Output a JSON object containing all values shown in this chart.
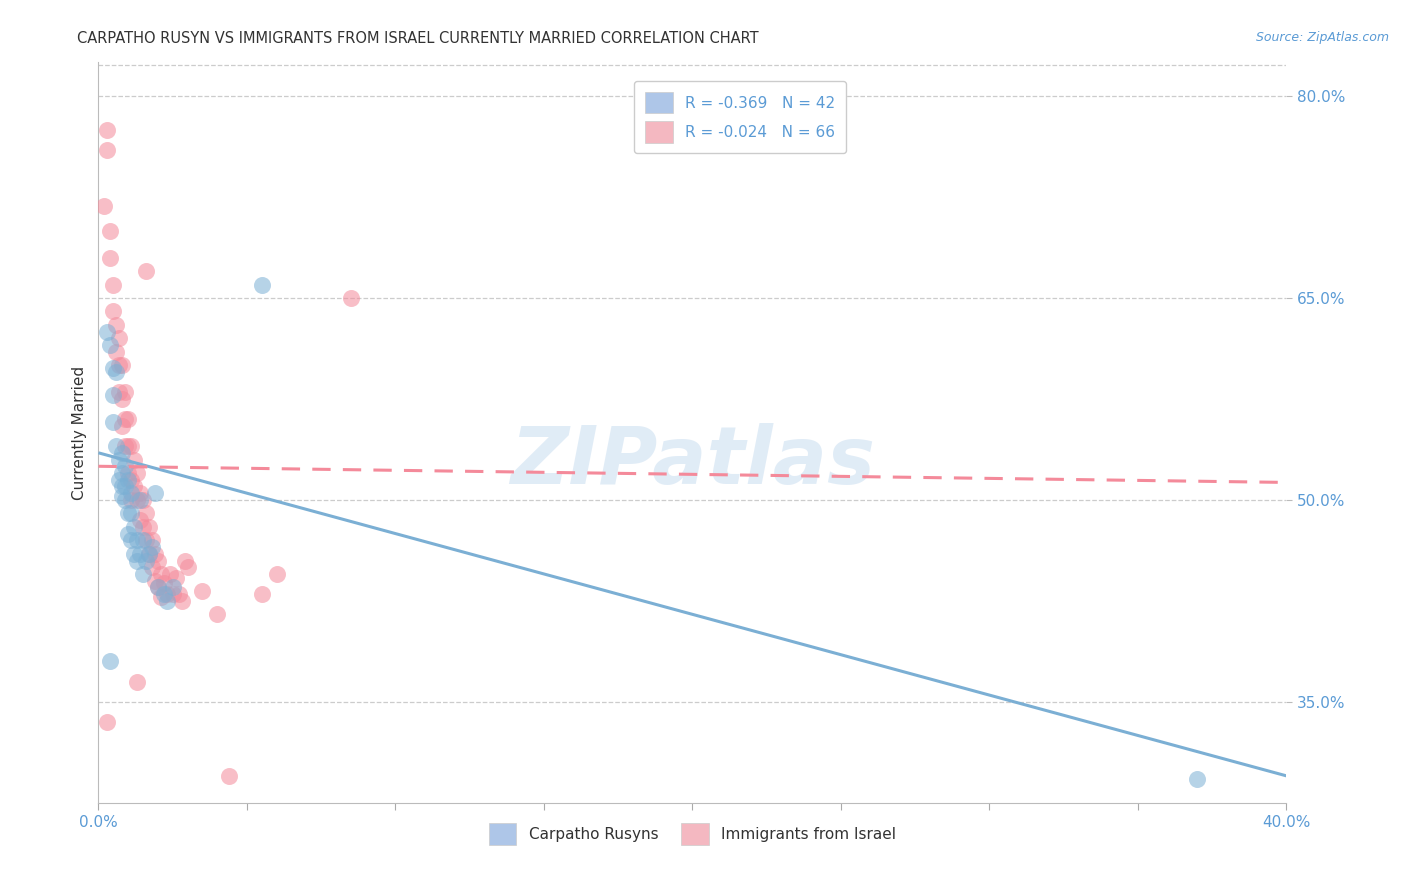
{
  "title": "CARPATHO RUSYN VS IMMIGRANTS FROM ISRAEL CURRENTLY MARRIED CORRELATION CHART",
  "source": "Source: ZipAtlas.com",
  "ylabel": "Currently Married",
  "x_min": 0.0,
  "x_max": 0.4,
  "y_min": 0.275,
  "y_max": 0.825,
  "x_ticks": [
    0.0,
    0.05,
    0.1,
    0.15,
    0.2,
    0.25,
    0.3,
    0.35,
    0.4
  ],
  "y_ticks": [
    0.35,
    0.5,
    0.65,
    0.8
  ],
  "y_tick_labels": [
    "35.0%",
    "50.0%",
    "65.0%",
    "80.0%"
  ],
  "legend_top": [
    {
      "label": "R = -0.369   N = 42",
      "color": "#aec6e8"
    },
    {
      "label": "R = -0.024   N = 66",
      "color": "#f4b8c1"
    }
  ],
  "legend_bottom": [
    {
      "label": "Carpatho Rusyns",
      "color": "#aec6e8"
    },
    {
      "label": "Immigrants from Israel",
      "color": "#f4b8c1"
    }
  ],
  "series1_color": "#7bafd4",
  "series2_color": "#f48a9a",
  "blue_line_x": [
    0.0,
    0.4
  ],
  "blue_line_y": [
    0.535,
    0.295
  ],
  "pink_line_x": [
    0.0,
    0.4
  ],
  "pink_line_y": [
    0.525,
    0.513
  ],
  "blue_scatter": [
    [
      0.003,
      0.625
    ],
    [
      0.004,
      0.615
    ],
    [
      0.005,
      0.598
    ],
    [
      0.005,
      0.578
    ],
    [
      0.005,
      0.558
    ],
    [
      0.006,
      0.595
    ],
    [
      0.006,
      0.54
    ],
    [
      0.007,
      0.53
    ],
    [
      0.007,
      0.515
    ],
    [
      0.008,
      0.535
    ],
    [
      0.008,
      0.52
    ],
    [
      0.008,
      0.51
    ],
    [
      0.008,
      0.503
    ],
    [
      0.009,
      0.525
    ],
    [
      0.009,
      0.51
    ],
    [
      0.009,
      0.5
    ],
    [
      0.01,
      0.515
    ],
    [
      0.01,
      0.49
    ],
    [
      0.01,
      0.475
    ],
    [
      0.011,
      0.505
    ],
    [
      0.011,
      0.49
    ],
    [
      0.011,
      0.47
    ],
    [
      0.012,
      0.48
    ],
    [
      0.012,
      0.46
    ],
    [
      0.013,
      0.47
    ],
    [
      0.013,
      0.455
    ],
    [
      0.014,
      0.5
    ],
    [
      0.014,
      0.46
    ],
    [
      0.015,
      0.47
    ],
    [
      0.015,
      0.445
    ],
    [
      0.016,
      0.455
    ],
    [
      0.017,
      0.46
    ],
    [
      0.018,
      0.465
    ],
    [
      0.019,
      0.505
    ],
    [
      0.02,
      0.435
    ],
    [
      0.022,
      0.43
    ],
    [
      0.023,
      0.425
    ],
    [
      0.025,
      0.435
    ],
    [
      0.004,
      0.38
    ],
    [
      0.055,
      0.66
    ],
    [
      0.37,
      0.293
    ]
  ],
  "pink_scatter": [
    [
      0.002,
      0.718
    ],
    [
      0.003,
      0.775
    ],
    [
      0.003,
      0.76
    ],
    [
      0.004,
      0.7
    ],
    [
      0.004,
      0.68
    ],
    [
      0.005,
      0.66
    ],
    [
      0.005,
      0.64
    ],
    [
      0.006,
      0.63
    ],
    [
      0.006,
      0.61
    ],
    [
      0.007,
      0.62
    ],
    [
      0.007,
      0.6
    ],
    [
      0.007,
      0.58
    ],
    [
      0.008,
      0.6
    ],
    [
      0.008,
      0.575
    ],
    [
      0.008,
      0.555
    ],
    [
      0.009,
      0.58
    ],
    [
      0.009,
      0.56
    ],
    [
      0.009,
      0.54
    ],
    [
      0.01,
      0.56
    ],
    [
      0.01,
      0.54
    ],
    [
      0.01,
      0.52
    ],
    [
      0.011,
      0.54
    ],
    [
      0.011,
      0.515
    ],
    [
      0.011,
      0.5
    ],
    [
      0.012,
      0.53
    ],
    [
      0.012,
      0.51
    ],
    [
      0.013,
      0.52
    ],
    [
      0.013,
      0.5
    ],
    [
      0.014,
      0.505
    ],
    [
      0.014,
      0.485
    ],
    [
      0.015,
      0.5
    ],
    [
      0.015,
      0.48
    ],
    [
      0.016,
      0.49
    ],
    [
      0.016,
      0.47
    ],
    [
      0.017,
      0.48
    ],
    [
      0.017,
      0.46
    ],
    [
      0.018,
      0.47
    ],
    [
      0.018,
      0.45
    ],
    [
      0.019,
      0.46
    ],
    [
      0.019,
      0.44
    ],
    [
      0.02,
      0.455
    ],
    [
      0.02,
      0.435
    ],
    [
      0.021,
      0.445
    ],
    [
      0.021,
      0.428
    ],
    [
      0.022,
      0.438
    ],
    [
      0.023,
      0.43
    ],
    [
      0.024,
      0.445
    ],
    [
      0.025,
      0.43
    ],
    [
      0.026,
      0.442
    ],
    [
      0.027,
      0.43
    ],
    [
      0.028,
      0.425
    ],
    [
      0.029,
      0.455
    ],
    [
      0.03,
      0.45
    ],
    [
      0.035,
      0.432
    ],
    [
      0.04,
      0.415
    ],
    [
      0.055,
      0.43
    ],
    [
      0.06,
      0.445
    ],
    [
      0.085,
      0.65
    ],
    [
      0.016,
      0.67
    ],
    [
      0.013,
      0.365
    ],
    [
      0.044,
      0.295
    ],
    [
      0.003,
      0.335
    ]
  ],
  "background_color": "#ffffff",
  "grid_color": "#cccccc",
  "title_color": "#333333",
  "axis_tick_color": "#5b9bd5",
  "watermark_text": "ZIPatlas",
  "watermark_color": "#c8ddf0"
}
